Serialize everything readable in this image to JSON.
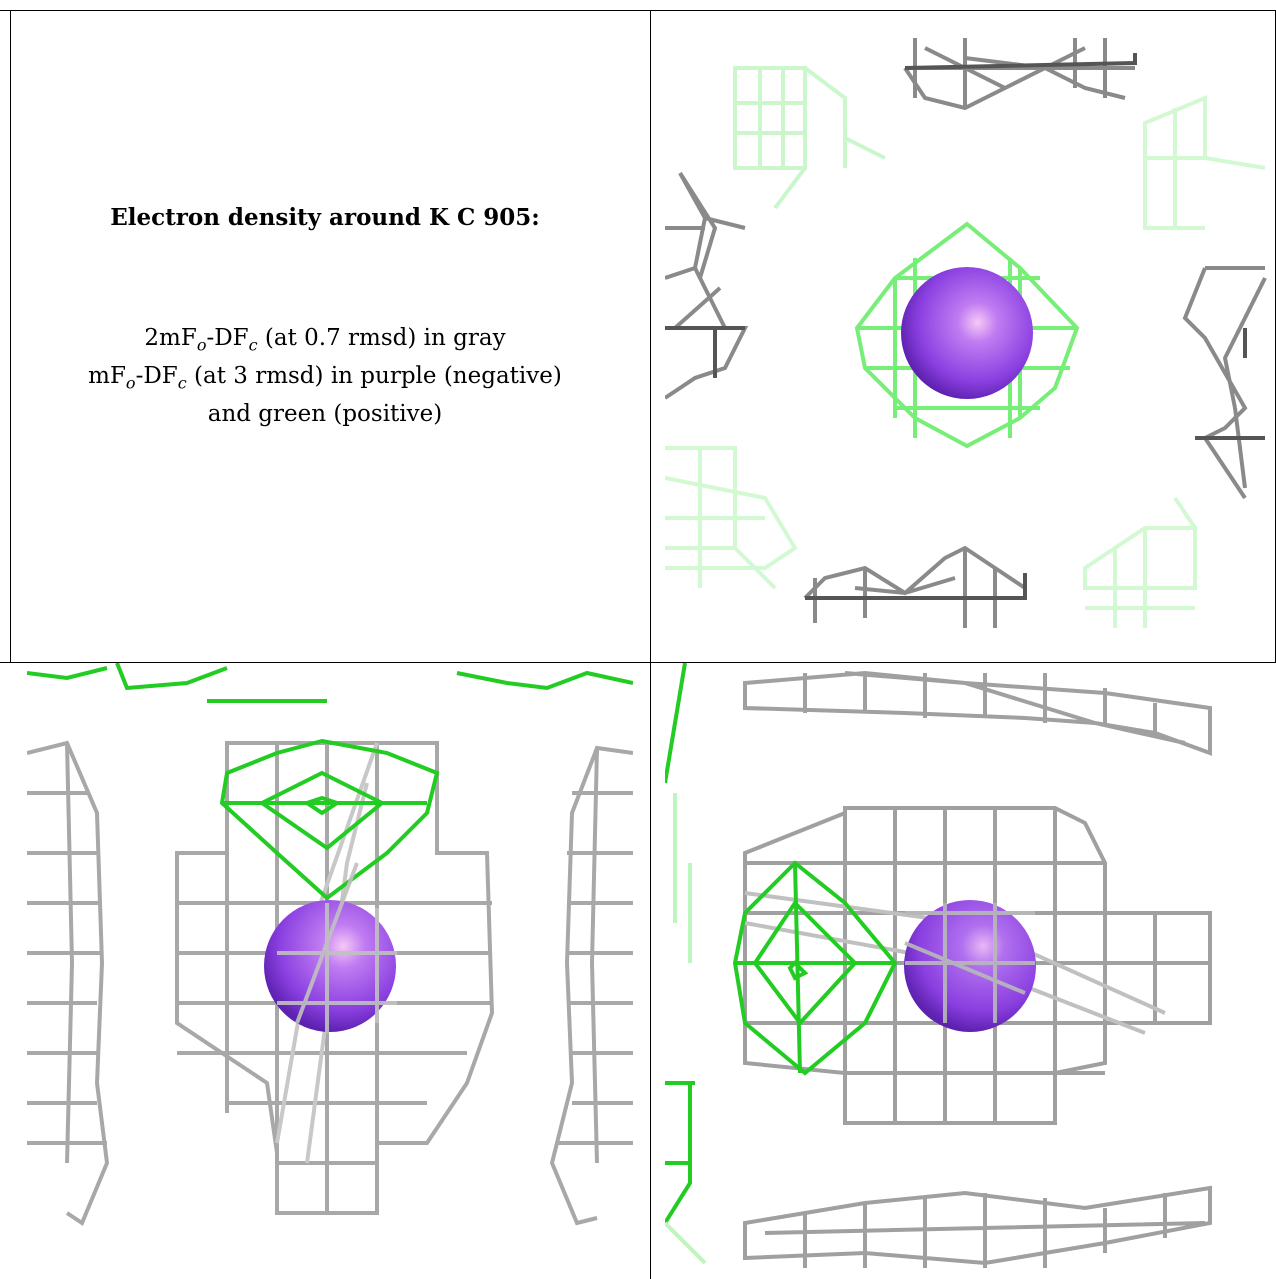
{
  "caption": {
    "title": "Electron density around K C 905:",
    "line1": {
      "a": "2mF",
      "b": "o",
      "c": "-DF",
      "d": "c",
      "e": " (at 0.7 rmsd) in gray"
    },
    "line2": {
      "a": "mF",
      "b": "o",
      "c": "-DF",
      "d": "c",
      "e": " (at 3 rmsd) in purple (negative)"
    },
    "line3": "and green (positive)"
  },
  "colors": {
    "gray_mesh": "#9a9a9a",
    "dark_mesh": "#555555",
    "green_mesh": "#22dd22",
    "light_green_mesh": "#bff5bf",
    "atom": "#8a3fe0",
    "atom_highlight": "#f6c8f6"
  },
  "panels": [
    {
      "view": "top-right",
      "atom": "K C 905"
    },
    {
      "view": "bottom-left",
      "atom": "K C 905"
    },
    {
      "view": "bottom-right",
      "atom": "K C 905"
    }
  ]
}
